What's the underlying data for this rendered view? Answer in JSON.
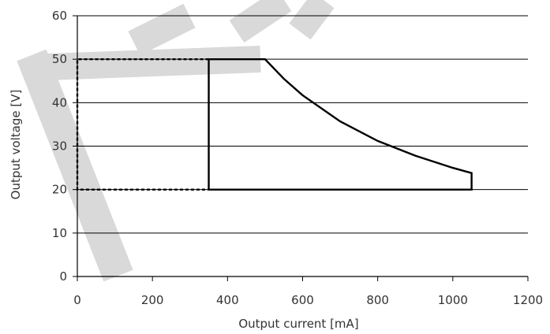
{
  "chart_data": {
    "type": "line",
    "title": "",
    "xlabel": "Output current [mA]",
    "ylabel": "Output voltage [V]",
    "xlim": [
      0,
      1200
    ],
    "ylim": [
      0,
      60
    ],
    "xticks": [
      0,
      200,
      400,
      600,
      800,
      1000,
      1200
    ],
    "yticks": [
      0,
      10,
      20,
      30,
      40,
      50,
      60
    ],
    "xtick_labels": [
      "0",
      "200",
      "400",
      "600",
      "800",
      "1000",
      "1200"
    ],
    "ytick_labels": [
      "0",
      "10",
      "20",
      "30",
      "40",
      "50",
      "60"
    ],
    "grid": "horizontal",
    "series": [
      {
        "style": "solid",
        "color": "#000000",
        "points": [
          [
            350,
            20
          ],
          [
            350,
            50
          ],
          [
            500,
            50
          ],
          [
            550,
            45.5
          ],
          [
            600,
            41.7
          ],
          [
            700,
            35.7
          ],
          [
            800,
            31.2
          ],
          [
            900,
            27.8
          ],
          [
            1000,
            25.0
          ],
          [
            1050,
            23.8
          ],
          [
            1050,
            20
          ],
          [
            350,
            20
          ]
        ]
      },
      {
        "style": "dashed",
        "color": "#000000",
        "points": [
          [
            350,
            50
          ],
          [
            0,
            50
          ],
          [
            0,
            20
          ],
          [
            350,
            20
          ]
        ]
      }
    ],
    "watermark_color": "#d9d9d9"
  }
}
